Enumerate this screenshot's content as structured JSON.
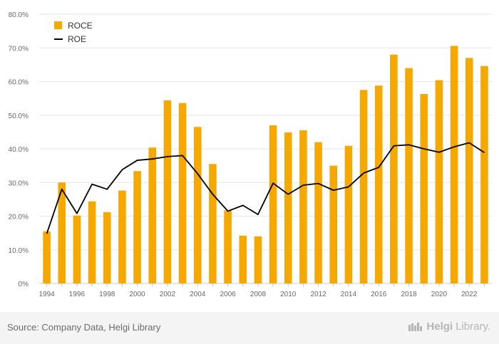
{
  "chart_data": {
    "type": "bar",
    "x": [
      "1994",
      "1995",
      "1996",
      "1997",
      "1998",
      "1999",
      "2000",
      "2001",
      "2002",
      "2003",
      "2004",
      "2005",
      "2006",
      "2007",
      "2008",
      "2009",
      "2010",
      "2011",
      "2012",
      "2013",
      "2014",
      "2015",
      "2016",
      "2017",
      "2018",
      "2019",
      "2020",
      "2021",
      "2022",
      "2023"
    ],
    "xtick_labels": [
      "1994",
      "1996",
      "1998",
      "2000",
      "2002",
      "2004",
      "2006",
      "2008",
      "2010",
      "2012",
      "2014",
      "2016",
      "2018",
      "2020",
      "2022"
    ],
    "series": [
      {
        "name": "ROCE",
        "type": "bar",
        "color": "#f5a800",
        "values": [
          15.5,
          30.0,
          20.2,
          24.4,
          21.2,
          27.6,
          33.4,
          40.4,
          54.4,
          53.6,
          46.5,
          35.5,
          21.7,
          14.2,
          14.0,
          47.0,
          44.9,
          45.5,
          42.0,
          35.0,
          40.9,
          57.5,
          58.8,
          68.0,
          64.0,
          56.3,
          60.4,
          70.6,
          67.0,
          64.6
        ]
      },
      {
        "name": "ROE",
        "type": "line",
        "color": "#000000",
        "values": [
          14.8,
          28.0,
          20.8,
          29.5,
          28.0,
          33.8,
          36.6,
          37.0,
          37.7,
          38.0,
          32.6,
          26.5,
          21.5,
          23.2,
          20.5,
          29.8,
          26.5,
          29.2,
          29.7,
          27.7,
          28.7,
          32.8,
          34.5,
          40.9,
          41.2,
          40.0,
          39.0,
          40.6,
          41.8,
          38.9
        ]
      }
    ],
    "ylim": [
      0,
      80
    ],
    "yticks": [
      0,
      10,
      20,
      30,
      40,
      50,
      60,
      70,
      80
    ],
    "ytick_labels": [
      "0%",
      "10.0%",
      "20.0%",
      "30.0%",
      "40.0%",
      "50.0%",
      "60.0%",
      "70.0%",
      "80.0%"
    ],
    "grid": true,
    "legend": "top-left"
  },
  "footer": {
    "source": "Source: Company Data, Helgi Library",
    "brand_bold": "Helgi",
    "brand_light": "Library."
  }
}
